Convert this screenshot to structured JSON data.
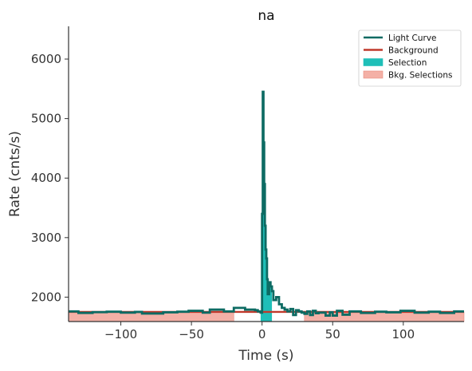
{
  "chart_data": {
    "type": "line",
    "title": "na",
    "xlabel": "Time (s)",
    "ylabel": "Rate (cnts/s)",
    "xlim": [
      -137,
      143
    ],
    "ylim": [
      1590,
      6550
    ],
    "x_ticks": [
      -100,
      -50,
      0,
      50,
      100
    ],
    "x_tick_labels": [
      "−100",
      "−50",
      "0",
      "50",
      "100"
    ],
    "y_ticks": [
      2000,
      3000,
      4000,
      5000,
      6000
    ],
    "y_tick_labels": [
      "2000",
      "3000",
      "4000",
      "5000",
      "6000"
    ],
    "grid": false,
    "legend_position": "top-right",
    "legend": [
      {
        "label": "Light Curve",
        "kind": "line",
        "color": "#0d6b63"
      },
      {
        "label": "Background",
        "kind": "line",
        "color": "#c0392b"
      },
      {
        "label": "Selection",
        "kind": "patch",
        "color": "#1fbfb8"
      },
      {
        "label": "Bkg. Selections",
        "kind": "patch",
        "color": "#f4b0a6"
      }
    ],
    "light_curve": {
      "color": "#0d6b63",
      "x": [
        -137,
        -130,
        -120,
        -110,
        -100,
        -90,
        -85,
        -70,
        -60,
        -52,
        -42,
        -37,
        -27,
        -20,
        -12,
        -8,
        -5,
        -3,
        -1,
        0,
        0.5,
        1,
        1.5,
        2,
        2.5,
        3,
        3.5,
        4,
        5,
        6,
        7,
        8,
        10,
        12,
        14,
        16,
        18,
        20,
        22,
        24,
        26,
        28,
        30,
        32,
        34,
        36,
        38,
        40,
        45,
        48,
        50,
        53,
        57,
        62,
        70,
        80,
        88,
        98,
        108,
        118,
        126,
        136,
        143
      ],
      "y": [
        1760,
        1735,
        1748,
        1755,
        1740,
        1752,
        1725,
        1745,
        1755,
        1770,
        1740,
        1790,
        1760,
        1820,
        1790,
        1790,
        1780,
        1760,
        1740,
        3400,
        5450,
        4600,
        3900,
        3200,
        2800,
        2650,
        2300,
        2050,
        2250,
        2180,
        2100,
        1950,
        2000,
        1880,
        1820,
        1790,
        1760,
        1800,
        1700,
        1780,
        1760,
        1740,
        1720,
        1760,
        1700,
        1770,
        1730,
        1740,
        1690,
        1745,
        1690,
        1770,
        1705,
        1760,
        1735,
        1755,
        1745,
        1770,
        1740,
        1755,
        1735,
        1760,
        1760
      ]
    },
    "background": {
      "color": "#c0392b",
      "value": 1752
    },
    "selection": {
      "color": "#1fbfb8",
      "x_range": [
        -1,
        7
      ]
    },
    "bkg_selections": {
      "color": "#f4b0a6",
      "ranges": [
        [
          -137,
          -20
        ],
        [
          30,
          143
        ]
      ]
    }
  }
}
